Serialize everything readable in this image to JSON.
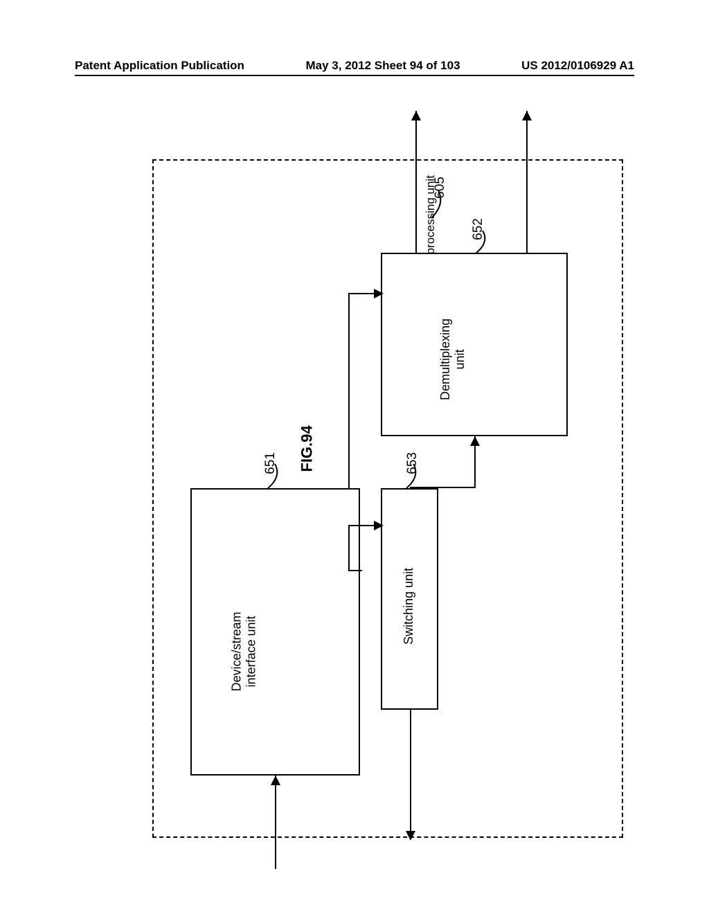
{
  "header": {
    "left": "Patent Application Publication",
    "center": "May 3, 2012  Sheet 94 of 103",
    "right": "US 2012/0106929 A1"
  },
  "figure": {
    "label": "FIG.94",
    "main_ref": "605",
    "container_label": "Stream processing unit",
    "box1": {
      "ref": "651",
      "label": "Device/stream\ninterface unit"
    },
    "box2": {
      "ref": "652",
      "label": "Demultiplexing\nunit"
    },
    "box3": {
      "ref": "653",
      "label": "Switching unit"
    }
  }
}
